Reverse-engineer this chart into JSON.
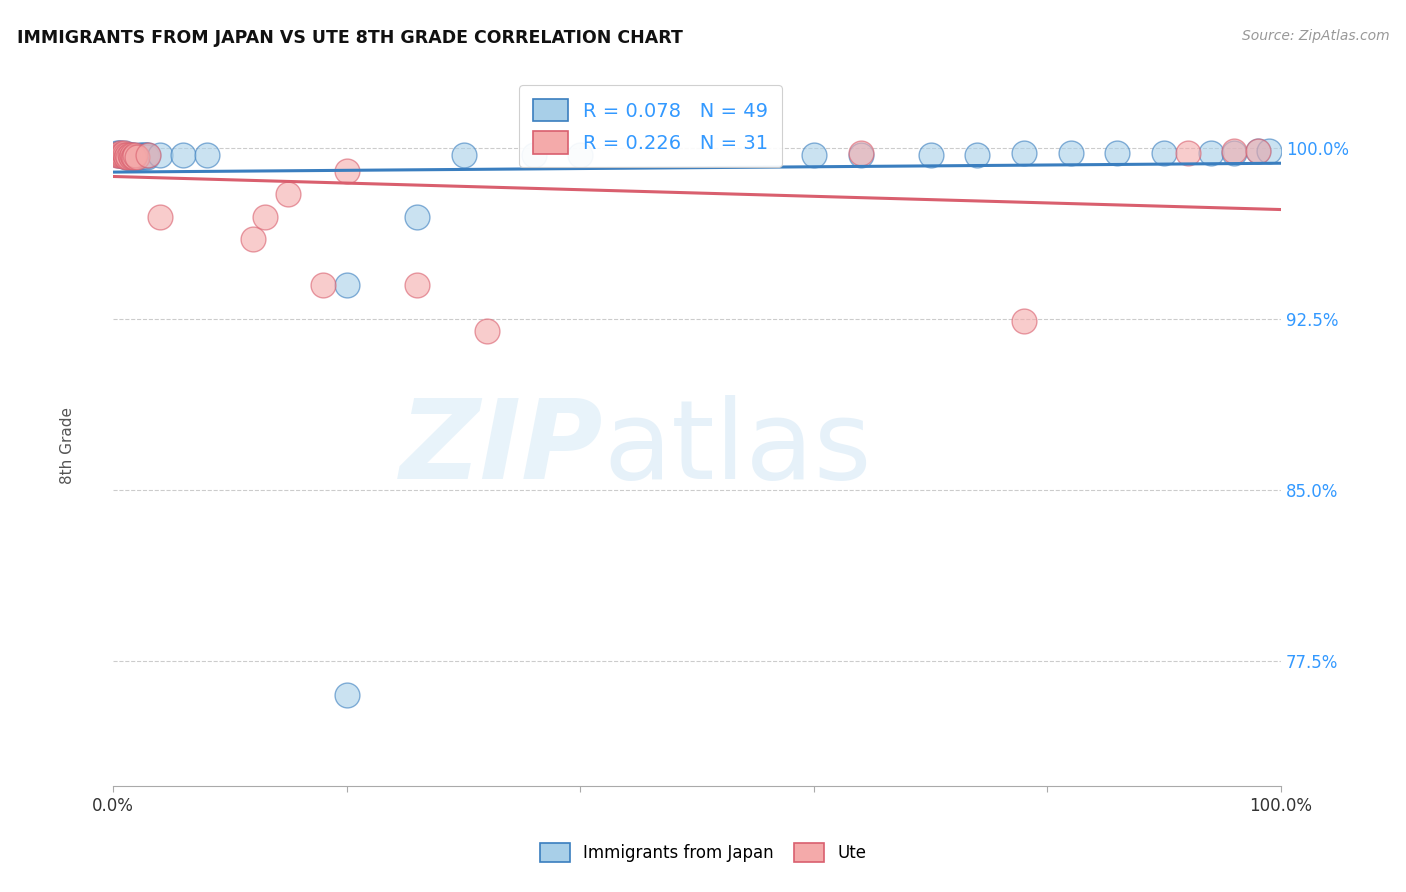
{
  "title": "IMMIGRANTS FROM JAPAN VS UTE 8TH GRADE CORRELATION CHART",
  "source": "Source: ZipAtlas.com",
  "ylabel": "8th Grade",
  "ytick_labels": [
    "100.0%",
    "92.5%",
    "85.0%",
    "77.5%"
  ],
  "ytick_values": [
    1.0,
    0.925,
    0.85,
    0.775
  ],
  "xlim": [
    0.0,
    1.0
  ],
  "ylim": [
    0.72,
    1.035
  ],
  "legend_label1": "Immigrants from Japan",
  "legend_label2": "Ute",
  "R_japan": 0.078,
  "N_japan": 49,
  "R_ute": 0.226,
  "N_ute": 31,
  "color_japan": "#a8cfe8",
  "color_ute": "#f4aaaa",
  "color_japan_line": "#3a7ebf",
  "color_ute_line": "#d95f6e",
  "background_color": "#ffffff",
  "japan_x": [
    0.003,
    0.004,
    0.005,
    0.006,
    0.007,
    0.008,
    0.009,
    0.01,
    0.011,
    0.012,
    0.013,
    0.014,
    0.015,
    0.016,
    0.017,
    0.018,
    0.019,
    0.02,
    0.021,
    0.022,
    0.023,
    0.024,
    0.025,
    0.026,
    0.027,
    0.028,
    0.029,
    0.03,
    0.04,
    0.06,
    0.08,
    0.2,
    0.26,
    0.3,
    0.36,
    0.4,
    0.6,
    0.64,
    0.7,
    0.74,
    0.78,
    0.82,
    0.86,
    0.9,
    0.94,
    0.96,
    0.98,
    0.99,
    0.2
  ],
  "japan_y": [
    0.998,
    0.997,
    0.998,
    0.997,
    0.998,
    0.997,
    0.997,
    0.998,
    0.996,
    0.997,
    0.996,
    0.997,
    0.996,
    0.997,
    0.996,
    0.997,
    0.996,
    0.996,
    0.996,
    0.996,
    0.997,
    0.996,
    0.997,
    0.996,
    0.997,
    0.997,
    0.996,
    0.997,
    0.997,
    0.997,
    0.997,
    0.94,
    0.97,
    0.997,
    0.997,
    0.997,
    0.997,
    0.997,
    0.997,
    0.997,
    0.998,
    0.998,
    0.998,
    0.998,
    0.998,
    0.998,
    0.999,
    0.999,
    0.76
  ],
  "ute_x": [
    0.003,
    0.005,
    0.006,
    0.007,
    0.008,
    0.009,
    0.01,
    0.011,
    0.012,
    0.013,
    0.014,
    0.015,
    0.016,
    0.017,
    0.018,
    0.019,
    0.02,
    0.03,
    0.04,
    0.12,
    0.18,
    0.26,
    0.32,
    0.64,
    0.78,
    0.92,
    0.96,
    0.98,
    0.13,
    0.15,
    0.2
  ],
  "ute_y": [
    0.997,
    0.997,
    0.998,
    0.997,
    0.997,
    0.998,
    0.997,
    0.996,
    0.997,
    0.996,
    0.997,
    0.996,
    0.997,
    0.996,
    0.996,
    0.997,
    0.996,
    0.997,
    0.97,
    0.96,
    0.94,
    0.94,
    0.92,
    0.998,
    0.924,
    0.998,
    0.999,
    0.999,
    0.97,
    0.98,
    0.99
  ]
}
